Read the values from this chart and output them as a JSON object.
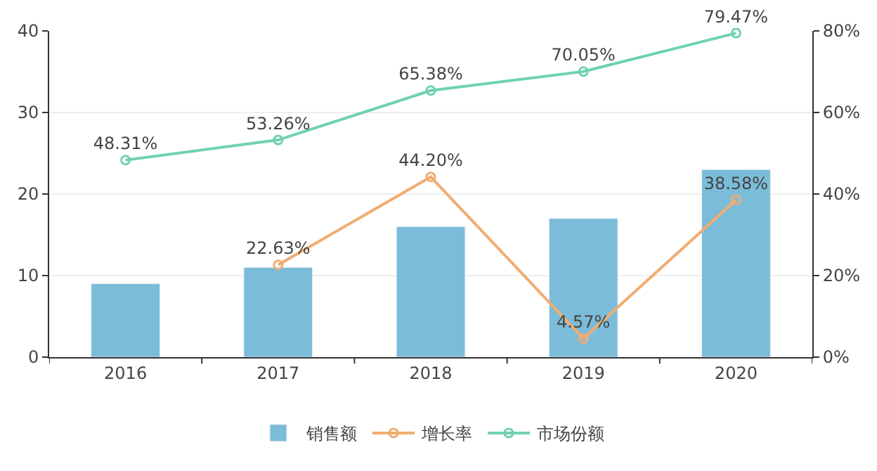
{
  "chart_data": {
    "type": "bar",
    "categories": [
      "2016",
      "2017",
      "2018",
      "2019",
      "2020"
    ],
    "series": [
      {
        "name": "销售额",
        "color": "#7bbcd9",
        "values": [
          9,
          11,
          16,
          17,
          23
        ]
      },
      {
        "name": "增长率",
        "type": "line",
        "axis": "y2",
        "color": "#f0ad70",
        "marker": "circle",
        "values": [
          null,
          22.63,
          44.2,
          4.57,
          38.58
        ],
        "value_labels": [
          null,
          "22.63%",
          "44.20%",
          "4.57%",
          "38.58%"
        ]
      },
      {
        "name": "市场份额",
        "type": "line",
        "axis": "y2",
        "color": "#70d2ad",
        "marker": "circle",
        "values": [
          48.31,
          53.26,
          65.38,
          70.05,
          79.47
        ],
        "value_labels": [
          "48.31%",
          "53.26%",
          "65.38%",
          "70.05%",
          "79.47%"
        ]
      }
    ],
    "ylim": [
      0,
      40
    ],
    "yticks": [
      0,
      10,
      20,
      30,
      40
    ],
    "y2lim": [
      0,
      80
    ],
    "y2ticks": [
      {
        "value": 0,
        "label": "0%"
      },
      {
        "value": 20,
        "label": "20%"
      },
      {
        "value": 40,
        "label": "40%"
      },
      {
        "value": 60,
        "label": "60%"
      },
      {
        "value": 80,
        "label": "80%"
      }
    ],
    "grid": "y",
    "legend": "bottom"
  }
}
